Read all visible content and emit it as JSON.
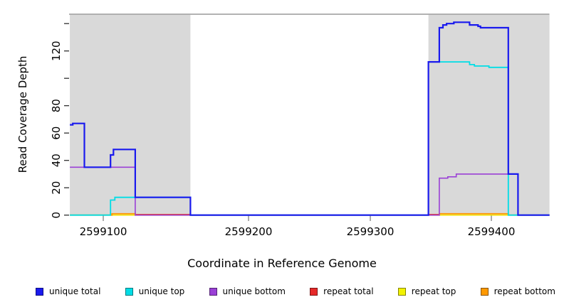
{
  "chart_data": {
    "type": "line",
    "subtype": "step-coverage",
    "title": "",
    "xlabel": "Coordinate in Reference Genome",
    "ylabel": "Read Coverage Depth",
    "xlim": [
      2599077,
      2599448
    ],
    "ylim": [
      0,
      147
    ],
    "x_ticks": [
      2599100,
      2599200,
      2599300,
      2599400
    ],
    "y_ticks": [
      0,
      20,
      40,
      60,
      80,
      100,
      120,
      140
    ],
    "y_ticks_labeled": [
      0,
      20,
      40,
      60,
      80,
      120
    ],
    "grid": false,
    "legend_position": "bottom",
    "shaded_regions": {
      "color": "#d9d9d9",
      "ranges": [
        [
          2599077,
          2599160
        ],
        [
          2599348,
          2599448
        ]
      ]
    },
    "frame_top_color": "#999999",
    "series": [
      {
        "key": "repeat_total",
        "name": "repeat total",
        "color": "#e62929",
        "points": [
          [
            2599077,
            0
          ],
          [
            2599122,
            0.5
          ],
          [
            2599160,
            0
          ],
          [
            2599348,
            0.5
          ],
          [
            2599357,
            0
          ]
        ]
      },
      {
        "key": "repeat_top",
        "name": "repeat top",
        "color": "#f2f200",
        "points": [
          [
            2599077,
            0
          ]
        ]
      },
      {
        "key": "repeat_bottom",
        "name": "repeat bottom",
        "color": "#ff9900",
        "points": [
          [
            2599077,
            0
          ],
          [
            2599106,
            1
          ],
          [
            2599122,
            0
          ],
          [
            2599357,
            1
          ],
          [
            2599414,
            0
          ]
        ]
      },
      {
        "key": "unique_bottom",
        "name": "unique bottom",
        "color": "#9a40d6",
        "points": [
          [
            2599077,
            35
          ],
          [
            2599122,
            0
          ],
          [
            2599357,
            27
          ],
          [
            2599364,
            28
          ],
          [
            2599371,
            30
          ],
          [
            2599422,
            0
          ]
        ]
      },
      {
        "key": "unique_top",
        "name": "unique top",
        "color": "#00dde6",
        "points": [
          [
            2599077,
            0
          ],
          [
            2599105,
            11
          ],
          [
            2599108,
            13
          ],
          [
            2599160,
            0
          ],
          [
            2599348,
            112
          ],
          [
            2599382,
            110
          ],
          [
            2599386,
            109
          ],
          [
            2599398,
            108
          ],
          [
            2599414,
            0
          ]
        ]
      },
      {
        "key": "unique_total",
        "name": "unique total",
        "color": "#1a1aee",
        "points": [
          [
            2599077,
            66
          ],
          [
            2599079,
            67
          ],
          [
            2599087,
            35
          ],
          [
            2599105,
            44
          ],
          [
            2599107,
            48
          ],
          [
            2599122,
            13
          ],
          [
            2599160,
            0
          ],
          [
            2599348,
            112
          ],
          [
            2599357,
            137
          ],
          [
            2599360,
            139
          ],
          [
            2599363,
            140
          ],
          [
            2599369,
            141
          ],
          [
            2599382,
            139
          ],
          [
            2599389,
            138
          ],
          [
            2599391,
            137
          ],
          [
            2599414,
            30
          ],
          [
            2599422,
            0
          ]
        ]
      }
    ],
    "legend_order": [
      "unique_total",
      "unique_top",
      "unique_bottom",
      "repeat_total",
      "repeat_top",
      "repeat_bottom"
    ]
  }
}
